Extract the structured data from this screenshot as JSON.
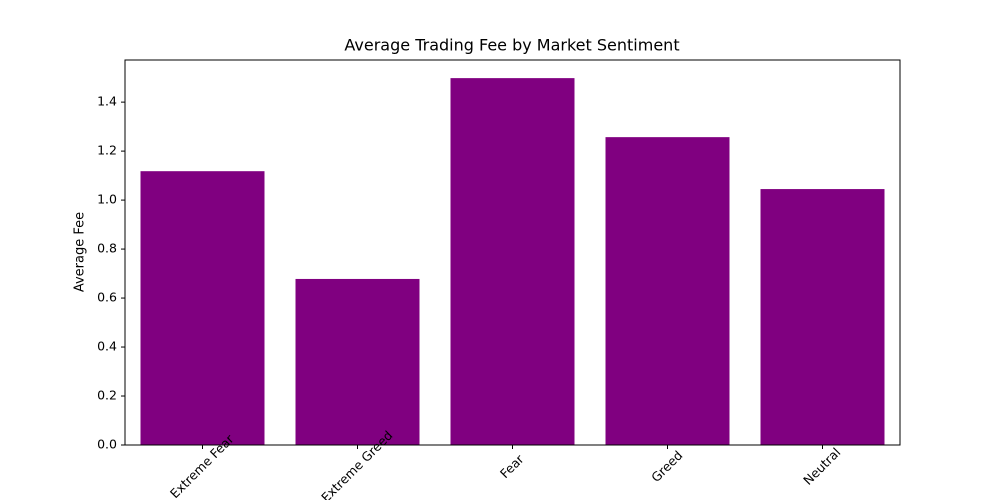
{
  "chart_data": {
    "type": "bar",
    "title": "Average Trading Fee by Market Sentiment",
    "ylabel": "Average Fee",
    "categories": [
      "Extreme Fear",
      "Extreme Greed",
      "Fear",
      "Greed",
      "Neutral"
    ],
    "values": [
      1.118,
      0.678,
      1.498,
      1.257,
      1.045
    ],
    "color": "#800080",
    "ylim": [
      0,
      1.572
    ],
    "yticks": [
      {
        "value": 0,
        "label": "0.0"
      },
      0.2,
      0.4,
      0.6,
      0.8,
      {
        "value": 1,
        "label": "1.0"
      },
      1.2,
      1.4
    ],
    "grid": false
  }
}
